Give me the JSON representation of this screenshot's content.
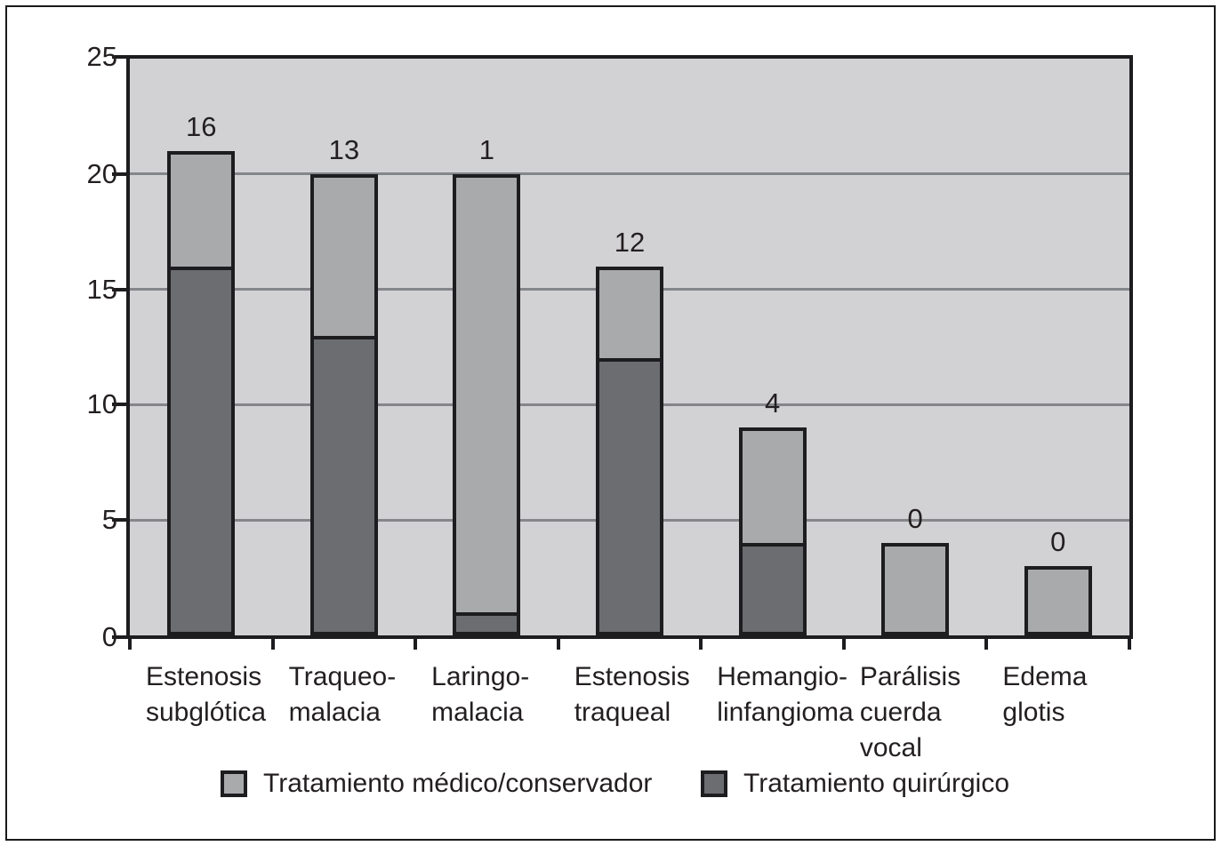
{
  "figure": {
    "background": "#ffffff",
    "border_color": "#1a1a1a"
  },
  "chart_data": {
    "type": "bar",
    "stacked": true,
    "orientation": "vertical",
    "title": "",
    "xlabel": "",
    "ylabel": "",
    "categories": [
      "Estenosis\nsubglótica",
      "Traqueo-\nmalacia",
      "Laringo-\nmalacia",
      "Estenosis\ntraqueal",
      "Hemangio-\nlinfangioma",
      "Parálisis\ncuerda\nvocal",
      "Edema\nglotis"
    ],
    "series": [
      {
        "name": "Tratamiento médico/conservador",
        "color": "#a9aaac",
        "stack": "top",
        "values": [
          5,
          7,
          19,
          4,
          5,
          4,
          3
        ]
      },
      {
        "name": "Tratamiento quirúrgico",
        "color": "#6c6d70",
        "stack": "bottom",
        "values": [
          16,
          13,
          1,
          12,
          4,
          0,
          0
        ]
      }
    ],
    "bar_value_labels": [
      "16",
      "13",
      "1",
      "12",
      "4",
      "0",
      "0"
    ],
    "ylim": [
      0,
      25
    ],
    "yticks": [
      0,
      5,
      10,
      15,
      20,
      25
    ],
    "grid": true,
    "legend_position": "bottom",
    "colors": {
      "plot_background": "#d2d2d4",
      "gridline": "#85868a",
      "bar_border": "#1d1d1f",
      "axis": "#1d1d1f",
      "text": "#231f20"
    }
  }
}
